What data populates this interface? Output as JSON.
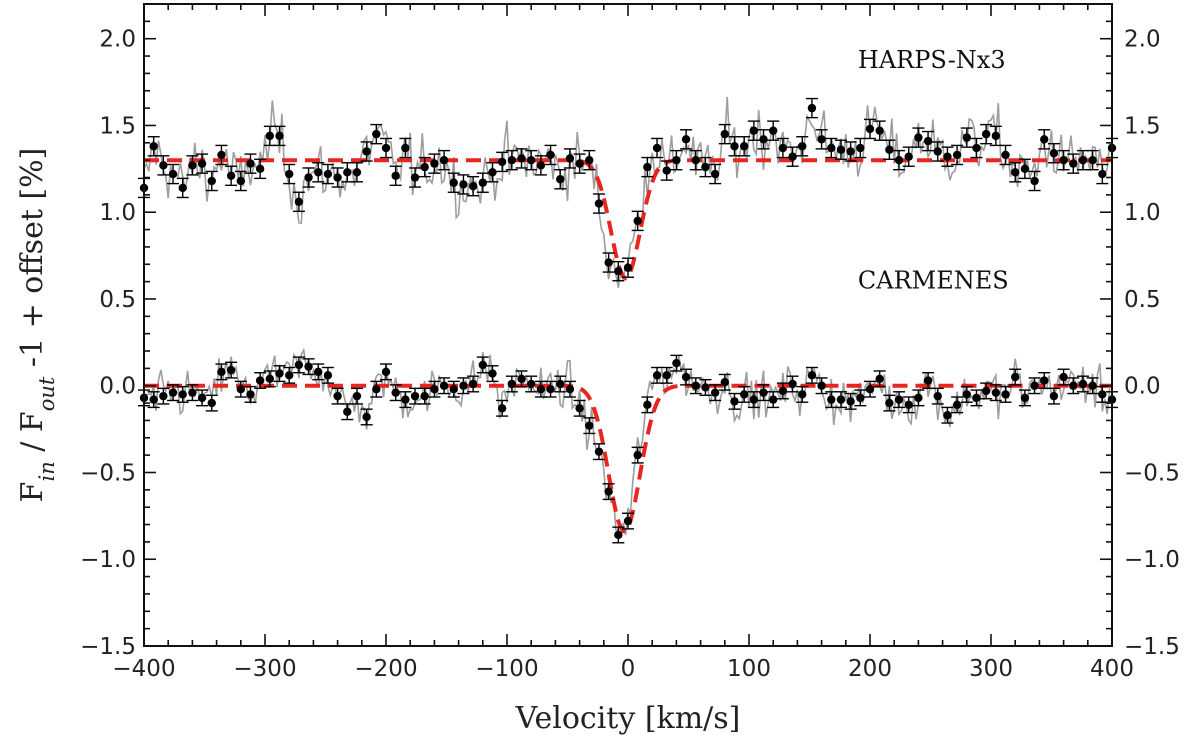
{
  "chart_data": {
    "type": "line",
    "title": "",
    "xlabel": "Velocity [km/s]",
    "ylabel_parts": {
      "f": "F",
      "in_sub": "in",
      "mid": " / F",
      "out_sub": "out",
      "tail": " -1  + offset [%]"
    },
    "xlim": [
      -400,
      400
    ],
    "ylim": [
      -1.5,
      2.2
    ],
    "x_ticks": [
      -400,
      -300,
      -200,
      -100,
      0,
      100,
      200,
      300,
      400
    ],
    "x_tick_labels": [
      "−400",
      "−300",
      "−200",
      "−100",
      "0",
      "100",
      "200",
      "300",
      "400"
    ],
    "y_ticks": [
      -1.5,
      -1.0,
      -0.5,
      0.0,
      0.5,
      1.0,
      1.5,
      2.0
    ],
    "y_tick_labels": [
      "−1.5",
      "−1.0",
      "−0.5",
      "0.0",
      "0.5",
      "1.0",
      "1.5",
      "2.0"
    ],
    "grid": false,
    "colors": {
      "raw": "#9e9e9e",
      "binned": "#000000",
      "model": "#e8251f"
    },
    "annotations": [
      {
        "text": "HARPS-Nx3",
        "x": 190,
        "y": 1.83
      },
      {
        "text": "CARMENES",
        "x": 190,
        "y": 0.56
      }
    ],
    "series": [
      {
        "annotation": "HARPS-Nx3",
        "binned_x": [
          -400,
          -392,
          -384,
          -376,
          -368,
          -360,
          -352,
          -344,
          -336,
          -328,
          -320,
          -312,
          -304,
          -296,
          -288,
          -280,
          -272,
          -264,
          -256,
          -248,
          -240,
          -232,
          -224,
          -216,
          -208,
          -200,
          -192,
          -184,
          -176,
          -168,
          -160,
          -152,
          -144,
          -136,
          -128,
          -120,
          -112,
          -104,
          -96,
          -88,
          -80,
          -72,
          -64,
          -56,
          -48,
          -40,
          -32,
          -24,
          -16,
          -8,
          0,
          8,
          16,
          24,
          32,
          40,
          48,
          56,
          64,
          72,
          80,
          88,
          96,
          104,
          112,
          120,
          128,
          136,
          144,
          152,
          160,
          168,
          176,
          184,
          192,
          200,
          208,
          216,
          224,
          232,
          240,
          248,
          256,
          264,
          272,
          280,
          288,
          296,
          304,
          312,
          320,
          328,
          336,
          344,
          352,
          360,
          368,
          376,
          384,
          392,
          400
        ],
        "binned_y": [
          1.14,
          1.38,
          1.27,
          1.22,
          1.14,
          1.27,
          1.28,
          1.18,
          1.33,
          1.21,
          1.18,
          1.28,
          1.25,
          1.44,
          1.44,
          1.22,
          1.06,
          1.2,
          1.23,
          1.22,
          1.2,
          1.23,
          1.23,
          1.35,
          1.45,
          1.37,
          1.21,
          1.37,
          1.2,
          1.26,
          1.28,
          1.3,
          1.17,
          1.16,
          1.15,
          1.17,
          1.23,
          1.29,
          1.3,
          1.31,
          1.3,
          1.27,
          1.33,
          1.19,
          1.31,
          1.28,
          1.3,
          1.05,
          0.71,
          0.66,
          0.68,
          0.95,
          1.26,
          1.37,
          1.24,
          1.3,
          1.42,
          1.3,
          1.26,
          1.22,
          1.45,
          1.38,
          1.38,
          1.47,
          1.42,
          1.47,
          1.37,
          1.32,
          1.38,
          1.6,
          1.42,
          1.37,
          1.36,
          1.35,
          1.37,
          1.48,
          1.47,
          1.36,
          1.3,
          1.32,
          1.43,
          1.41,
          1.35,
          1.32,
          1.33,
          1.43,
          1.37,
          1.45,
          1.44,
          1.33,
          1.23,
          1.25,
          1.18,
          1.42,
          1.34,
          1.3,
          1.28,
          1.3,
          1.3,
          1.22,
          1.37
        ],
        "model": {
          "baseline": 1.3,
          "depth": 0.68,
          "center": -2,
          "sigma": 12
        }
      },
      {
        "annotation": "CARMENES",
        "binned_x": [
          -400,
          -392,
          -384,
          -376,
          -368,
          -360,
          -352,
          -344,
          -336,
          -328,
          -320,
          -312,
          -304,
          -296,
          -288,
          -280,
          -272,
          -264,
          -256,
          -248,
          -240,
          -232,
          -224,
          -216,
          -208,
          -200,
          -192,
          -184,
          -176,
          -168,
          -160,
          -152,
          -144,
          -136,
          -128,
          -120,
          -112,
          -104,
          -96,
          -88,
          -80,
          -72,
          -64,
          -56,
          -48,
          -40,
          -32,
          -24,
          -16,
          -8,
          0,
          8,
          16,
          24,
          32,
          40,
          48,
          56,
          64,
          72,
          80,
          88,
          96,
          104,
          112,
          120,
          128,
          136,
          144,
          152,
          160,
          168,
          176,
          184,
          192,
          200,
          208,
          216,
          224,
          232,
          240,
          248,
          256,
          264,
          272,
          280,
          288,
          296,
          304,
          312,
          320,
          328,
          336,
          344,
          352,
          360,
          368,
          376,
          384,
          392,
          400
        ],
        "binned_y": [
          -0.07,
          -0.08,
          -0.06,
          -0.04,
          -0.05,
          -0.04,
          -0.07,
          -0.1,
          0.08,
          0.09,
          -0.02,
          -0.05,
          0.03,
          0.04,
          0.07,
          0.06,
          0.12,
          0.11,
          0.08,
          0.06,
          -0.06,
          -0.15,
          -0.06,
          -0.18,
          -0.02,
          0.08,
          -0.04,
          -0.08,
          -0.06,
          -0.06,
          -0.02,
          0.0,
          -0.02,
          0.0,
          0.01,
          0.12,
          0.07,
          -0.13,
          0.01,
          0.04,
          0.01,
          -0.02,
          -0.02,
          0.01,
          -0.02,
          -0.13,
          -0.23,
          -0.38,
          -0.61,
          -0.86,
          -0.78,
          -0.4,
          -0.11,
          0.06,
          0.06,
          0.13,
          0.05,
          0.0,
          -0.01,
          -0.04,
          0.02,
          -0.09,
          -0.05,
          -0.08,
          -0.04,
          -0.08,
          -0.03,
          0.01,
          -0.05,
          0.06,
          0.0,
          -0.08,
          -0.08,
          -0.09,
          -0.07,
          -0.02,
          0.04,
          -0.1,
          -0.08,
          -0.11,
          -0.07,
          0.03,
          -0.06,
          -0.17,
          -0.11,
          -0.05,
          -0.07,
          -0.03,
          -0.04,
          -0.05,
          0.05,
          -0.07,
          0.0,
          0.03,
          -0.06,
          0.05,
          0.0,
          0.01,
          0.0,
          -0.05,
          -0.08
        ],
        "model": {
          "baseline": 0.0,
          "depth": 0.84,
          "center": -3,
          "sigma": 13
        }
      }
    ]
  }
}
